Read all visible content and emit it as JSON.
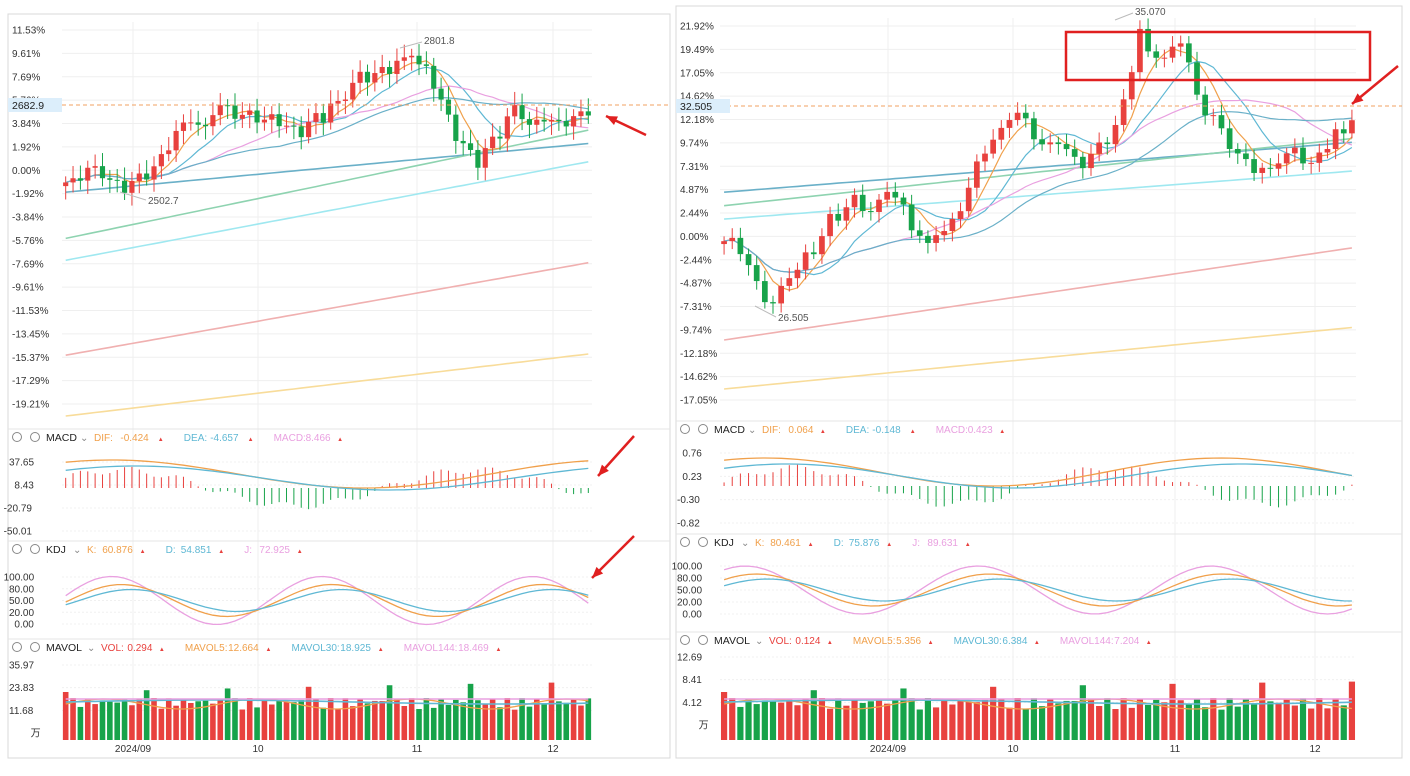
{
  "colors": {
    "up": "#e8413e",
    "down": "#17a34a",
    "ma5": "#f0a04b",
    "ma10": "#5fb8d4",
    "ma20": "#e9a0e0",
    "ma30": "#6ab0c8",
    "ma60": "#8ed3b0",
    "ma120": "#9fe8f0",
    "ma250": "#f0b0b0",
    "ma500": "#f8dc9a",
    "dif": "#f0a04b",
    "dea": "#5fb8d4",
    "k": "#f0a04b",
    "d": "#5fb8d4",
    "j": "#e9a0e0",
    "annotation": "#e02020"
  },
  "left": {
    "current_price": "2682.9",
    "high_label": "2801.8",
    "low_label": "2502.7",
    "main_ticks": [
      "11.53%",
      "9.61%",
      "7.69%",
      "5.76%",
      "3.84%",
      "1.92%",
      "0.00%",
      "-1.92%",
      "-3.84%",
      "-5.76%",
      "-7.69%",
      "-9.61%",
      "-11.53%",
      "-13.45%",
      "-15.37%",
      "-17.29%",
      "-19.21%"
    ],
    "x_ticks": [
      "2024/09",
      "10",
      "11",
      "12"
    ],
    "macd": {
      "name": "MACD",
      "dif_label": "DIF:",
      "dif": "-0.424",
      "dea_label": "DEA:",
      "dea": "-4.657",
      "macd_label": "MACD:",
      "macd": "8.466",
      "ticks": [
        "37.65",
        "8.43",
        "-20.79",
        "-50.01"
      ]
    },
    "kdj": {
      "name": "KDJ",
      "k_label": "K:",
      "k": "60.876",
      "d_label": "D:",
      "d": "54.851",
      "j_label": "J:",
      "j": "72.925",
      "ticks": [
        "100.00",
        "80.00",
        "50.00",
        "20.00",
        "0.00"
      ]
    },
    "mavol": {
      "name": "MAVOL",
      "vol_label": "VOL:",
      "vol": "0.294",
      "m5_label": "MAVOL5:",
      "m5": "12.664",
      "m30_label": "MAVOL30:",
      "m30": "18.925",
      "m144_label": "MAVOL144:",
      "m144": "18.469",
      "ticks": [
        "35.97",
        "23.83",
        "11.68",
        "万"
      ]
    }
  },
  "right": {
    "current_price": "32.505",
    "high_label": "35.070",
    "low_label": "26.505",
    "main_ticks": [
      "21.92%",
      "19.49%",
      "17.05%",
      "14.62%",
      "12.18%",
      "9.74%",
      "7.31%",
      "4.87%",
      "2.44%",
      "0.00%",
      "-2.44%",
      "-4.87%",
      "-7.31%",
      "-9.74%",
      "-12.18%",
      "-14.62%",
      "-17.05%"
    ],
    "x_ticks": [
      "2024/09",
      "10",
      "11",
      "12"
    ],
    "macd": {
      "name": "MACD",
      "dif_label": "DIF:",
      "dif": "0.064",
      "dea_label": "DEA:",
      "dea": "-0.148",
      "macd_label": "MACD:",
      "macd": "0.423",
      "ticks": [
        "0.76",
        "0.23",
        "-0.30",
        "-0.82"
      ]
    },
    "kdj": {
      "name": "KDJ",
      "k_label": "K:",
      "k": "80.461",
      "d_label": "D:",
      "d": "75.876",
      "j_label": "J:",
      "j": "89.631",
      "ticks": [
        "100.00",
        "80.00",
        "50.00",
        "20.00",
        "0.00"
      ]
    },
    "mavol": {
      "name": "MAVOL",
      "vol_label": "VOL:",
      "vol": "0.124",
      "m5_label": "MAVOL5:",
      "m5": "5.356",
      "m30_label": "MAVOL30:",
      "m30": "6.384",
      "m144_label": "MAVOL144:",
      "m144": "7.204",
      "ticks": [
        "12.69",
        "8.41",
        "4.12",
        "万"
      ]
    }
  },
  "chart_data": [
    {
      "type": "candlestick",
      "panel": "left",
      "y_unit": "% change",
      "x_axis_labels": [
        "2024/09",
        "10",
        "11",
        "12"
      ],
      "current_price": 2682.9,
      "period_high": 2801.8,
      "period_low": 2502.7,
      "closes_pct_approx": [
        -1.0,
        -0.5,
        0.2,
        0.0,
        -0.3,
        -0.8,
        -1.2,
        -1.5,
        -0.9,
        -0.6,
        -0.4,
        0.3,
        1.0,
        2.0,
        3.2,
        3.6,
        4.3,
        3.7,
        3.3,
        4.9,
        5.3,
        5.0,
        4.6,
        4.5,
        4.6,
        4.3,
        4.1,
        4.3,
        4.0,
        3.6,
        3.3,
        3.1,
        3.9,
        4.4,
        4.3,
        5.4,
        6.2,
        7.1,
        7.8,
        7.6,
        7.9,
        8.2,
        8.3,
        8.9,
        9.0,
        9.8,
        8.6,
        8.3,
        7.1,
        5.7,
        4.3,
        2.8,
        2.1,
        1.4,
        0.6,
        1.7,
        2.5,
        3.0,
        4.3,
        5.1,
        4.6,
        3.6,
        3.9,
        4.4,
        4.0,
        3.8,
        4.0,
        4.3,
        4.6,
        4.9
      ]
    },
    {
      "type": "candlestick",
      "panel": "right",
      "y_unit": "% change",
      "x_axis_labels": [
        "2024/09",
        "10",
        "11",
        "12"
      ],
      "current_price": 32.505,
      "period_high": 35.07,
      "period_low": 26.505,
      "closes_pct_approx": [
        -0.5,
        -1.5,
        -3.0,
        -5.0,
        -6.5,
        -7.0,
        -5.5,
        -4.0,
        -3.5,
        -2.0,
        -1.5,
        0.0,
        2.0,
        3.0,
        4.0,
        3.0,
        2.5,
        3.5,
        5.0,
        4.0,
        3.0,
        1.0,
        0.0,
        -1.0,
        0.5,
        1.5,
        3.0,
        5.0,
        7.5,
        9.0,
        10.0,
        11.0,
        12.5,
        12.8,
        12.0,
        10.5,
        9.5,
        10.0,
        9.0,
        8.0,
        7.5,
        8.5,
        9.5,
        10.0,
        11.5,
        14.0,
        17.5,
        21.5,
        19.0,
        18.5,
        19.5,
        20.5,
        18.0,
        14.5,
        13.0,
        12.5,
        11.0,
        9.5,
        8.5,
        7.8,
        7.0,
        6.8,
        8.0,
        8.5,
        9.0,
        8.0,
        7.5,
        8.5,
        9.5,
        11.0,
        10.5,
        12.5
      ]
    }
  ]
}
